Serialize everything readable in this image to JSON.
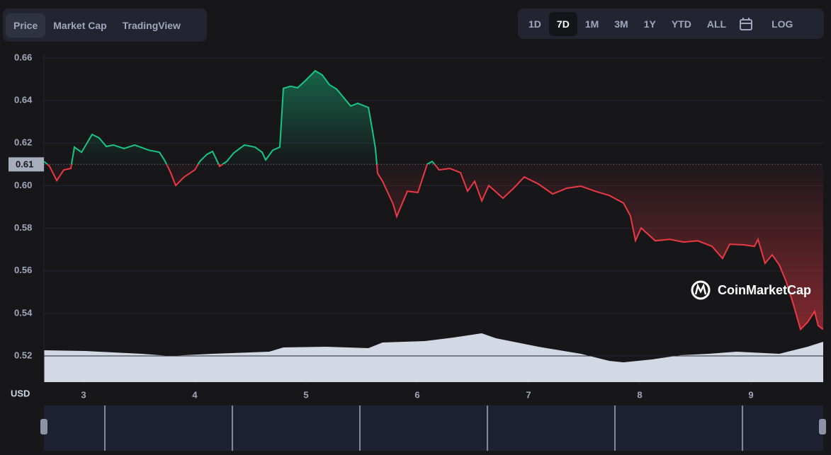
{
  "ui": {
    "tabs": [
      "Price",
      "Market Cap",
      "TradingView"
    ],
    "ranges": [
      "1D",
      "7D",
      "1M",
      "3M",
      "1Y",
      "YTD",
      "ALL"
    ],
    "log": "LOG",
    "watermark": "CoinMarketCap"
  },
  "chart_data": {
    "type": "line",
    "x": [
      2.643,
      2.694,
      2.758,
      2.822,
      2.885,
      2.917,
      2.981,
      3.076,
      3.14,
      3.204,
      3.268,
      3.363,
      3.459,
      3.586,
      3.682,
      3.726,
      3.777,
      3.828,
      3.904,
      4.0,
      4.045,
      4.108,
      4.159,
      4.223,
      4.287,
      4.35,
      4.446,
      4.541,
      4.605,
      4.637,
      4.701,
      4.764,
      4.796,
      4.86,
      4.924,
      4.987,
      5.083,
      5.146,
      5.21,
      5.274,
      5.338,
      5.401,
      5.465,
      5.561,
      5.592,
      5.624,
      5.643,
      5.688,
      5.783,
      5.815,
      5.911,
      6.006,
      6.089,
      6.134,
      6.197,
      6.293,
      6.389,
      6.452,
      6.516,
      6.58,
      6.643,
      6.771,
      6.866,
      6.962,
      7.089,
      7.217,
      7.344,
      7.471,
      7.599,
      7.726,
      7.854,
      7.917,
      7.962,
      8.013,
      8.14,
      8.268,
      8.395,
      8.522,
      8.65,
      8.745,
      8.809,
      8.936,
      9.032,
      9.064,
      9.127,
      9.191,
      9.255,
      9.318,
      9.382,
      9.446,
      9.51,
      9.573,
      9.605,
      9.65
    ],
    "values": [
      0.6114,
      0.6091,
      0.6024,
      0.6074,
      0.6081,
      0.6181,
      0.6157,
      0.6241,
      0.6224,
      0.6184,
      0.6191,
      0.6174,
      0.6191,
      0.6167,
      0.6157,
      0.6121,
      0.6068,
      0.6001,
      0.6041,
      0.6074,
      0.6114,
      0.6147,
      0.6161,
      0.6091,
      0.6114,
      0.6154,
      0.6191,
      0.6181,
      0.6157,
      0.6121,
      0.6167,
      0.6181,
      0.6457,
      0.6467,
      0.646,
      0.649,
      0.654,
      0.652,
      0.6474,
      0.6454,
      0.6414,
      0.6374,
      0.6387,
      0.6367,
      0.6274,
      0.6174,
      0.6058,
      0.6021,
      0.5914,
      0.5855,
      0.5974,
      0.5968,
      0.6101,
      0.6114,
      0.6074,
      0.6081,
      0.6061,
      0.5974,
      0.6021,
      0.5928,
      0.6001,
      0.5941,
      0.5988,
      0.6041,
      0.6008,
      0.5961,
      0.5988,
      0.5998,
      0.5974,
      0.5954,
      0.5918,
      0.5858,
      0.5742,
      0.5801,
      0.5741,
      0.5748,
      0.5735,
      0.5741,
      0.5715,
      0.5658,
      0.5725,
      0.5722,
      0.5715,
      0.5748,
      0.5635,
      0.5675,
      0.5628,
      0.5548,
      0.5442,
      0.5325,
      0.5359,
      0.5409,
      0.5342,
      0.5325
    ],
    "baseline": 0.61,
    "up_color": "#16c784",
    "down_color": "#ea3943",
    "navigator_color": "#4a7cf7",
    "xlim": [
      2.643,
      9.65
    ],
    "xticks": [
      3,
      4,
      5,
      6,
      7,
      8,
      9
    ],
    "ylim": [
      0.5077,
      0.6623
    ],
    "yticks": [
      0.52,
      0.54,
      0.56,
      0.58,
      {
        "value": 0.6,
        "label": "0.60"
      },
      0.62,
      0.64,
      0.66
    ],
    "ylabel": "USD",
    "grid": true
  }
}
